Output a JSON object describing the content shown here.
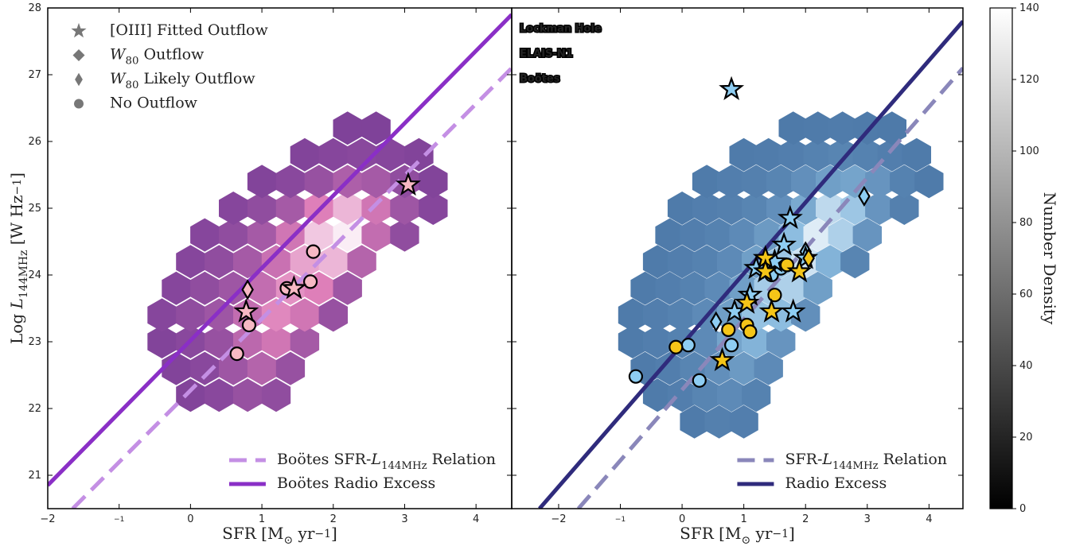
{
  "chart_data": [
    {
      "type": "hexbin",
      "xlim": [
        -2,
        4.5
      ],
      "ylim": [
        20.5,
        28
      ],
      "xticks": [
        {
          "value": -2,
          "label": "−2"
        },
        {
          "value": -1,
          "label": "−1"
        },
        0,
        1,
        2,
        3,
        4
      ],
      "yticks": [
        21,
        22,
        23,
        24,
        25,
        26,
        27,
        28
      ],
      "xlabel": "SFR [M⊙ yr−1]",
      "ylabel": "Log L144MHz [W Hz−1]",
      "colors": [
        "#7b3f98",
        "#de7fb9",
        "#ffffff"
      ],
      "hexbins": {
        "x": [
          0.0,
          0.4,
          0.8,
          1.2,
          -0.2,
          0.2,
          0.6,
          1.0,
          1.4,
          -0.4,
          0.0,
          0.4,
          0.8,
          1.2,
          1.6,
          -0.4,
          0.0,
          0.4,
          0.8,
          1.2,
          1.6,
          2.0,
          -0.2,
          0.2,
          0.6,
          1.0,
          1.4,
          1.8,
          2.2,
          0.0,
          0.4,
          0.8,
          1.2,
          1.6,
          2.0,
          2.4,
          0.2,
          0.6,
          1.0,
          1.4,
          1.8,
          2.2,
          2.6,
          3.0,
          0.6,
          1.0,
          1.4,
          1.8,
          2.2,
          2.6,
          3.0,
          3.4,
          1.0,
          1.4,
          1.8,
          2.2,
          2.6,
          3.0,
          3.4,
          1.6,
          2.0,
          2.4,
          2.8,
          3.2,
          2.2,
          2.6
        ],
        "y": [
          22.2,
          22.2,
          22.2,
          22.2,
          22.6,
          22.6,
          22.6,
          22.6,
          22.6,
          23.0,
          23.0,
          23.0,
          23.0,
          23.0,
          23.0,
          23.4,
          23.4,
          23.4,
          23.4,
          23.4,
          23.4,
          23.4,
          23.8,
          23.8,
          23.8,
          23.8,
          23.8,
          23.8,
          23.8,
          24.2,
          24.2,
          24.2,
          24.2,
          24.2,
          24.2,
          24.2,
          24.6,
          24.6,
          24.6,
          24.6,
          24.6,
          24.6,
          24.6,
          24.6,
          25.0,
          25.0,
          25.0,
          25.0,
          25.0,
          25.0,
          25.0,
          25.0,
          25.4,
          25.4,
          25.4,
          25.4,
          25.4,
          25.4,
          25.4,
          25.8,
          25.8,
          25.8,
          25.8,
          25.8,
          26.2,
          26.2
        ],
        "counts": [
          5,
          10,
          20,
          15,
          5,
          10,
          25,
          40,
          20,
          5,
          10,
          20,
          45,
          60,
          30,
          8,
          15,
          25,
          50,
          75,
          60,
          20,
          8,
          15,
          25,
          50,
          80,
          70,
          25,
          8,
          15,
          30,
          55,
          90,
          100,
          40,
          8,
          15,
          30,
          60,
          110,
          130,
          50,
          15,
          8,
          15,
          30,
          70,
          100,
          60,
          25,
          8,
          5,
          10,
          20,
          35,
          30,
          15,
          5,
          5,
          8,
          10,
          8,
          5,
          3,
          3
        ]
      },
      "lines": [
        {
          "name": "Boötes SFR-L144MHz Relation",
          "color": "#c48fe4",
          "style": "dashed",
          "x": [
            -1.65,
            4.5
          ],
          "y": [
            20.5,
            27.1
          ]
        },
        {
          "name": "Boötes Radio Excess",
          "color": "#8a2fc6",
          "style": "solid",
          "x": [
            -2,
            4.5
          ],
          "y": [
            20.85,
            27.9
          ]
        }
      ],
      "markers": [
        {
          "name": "[OIII] Fitted Outflow",
          "marker": "star"
        },
        {
          "name": "W80 Outflow",
          "marker": "diamond"
        },
        {
          "name": "W80 Likely Outflow",
          "marker": "thin_diamond"
        },
        {
          "name": "No Outflow",
          "marker": "circle"
        }
      ],
      "groups": [
        {
          "color": "#f7b9c4",
          "circle": {
            "x": [
              0.65,
              0.82,
              1.35,
              1.68,
              1.72
            ],
            "y": [
              22.82,
              23.25,
              23.8,
              23.9,
              24.35
            ]
          },
          "thin_diamond": {
            "x": [
              0.8
            ],
            "y": [
              23.78
            ]
          },
          "star": {
            "x": [
              3.05,
              0.78,
              1.45
            ],
            "y": [
              25.35,
              23.45,
              23.8
            ]
          }
        }
      ]
    },
    {
      "type": "hexbin",
      "xlim": [
        -2.76,
        4.55
      ],
      "ylim": [
        20.5,
        28
      ],
      "xticks": [
        {
          "value": -2,
          "label": "−2"
        },
        {
          "value": -1,
          "label": "−1"
        },
        0,
        1,
        2,
        3,
        4
      ],
      "xlabel": "SFR [M⊙ yr−1]",
      "colors": [
        "#4a76a6",
        "#8dbde0",
        "#ffffff"
      ],
      "hexbins": {
        "x": [
          0.2,
          0.6,
          1.0,
          -0.4,
          0.0,
          0.4,
          0.8,
          1.2,
          -0.6,
          -0.2,
          0.2,
          0.6,
          1.0,
          1.4,
          -0.8,
          -0.4,
          0.0,
          0.4,
          0.8,
          1.2,
          1.6,
          -0.8,
          -0.4,
          0.0,
          0.4,
          0.8,
          1.2,
          1.6,
          2.0,
          -0.6,
          -0.2,
          0.2,
          0.6,
          1.0,
          1.4,
          1.8,
          2.2,
          -0.4,
          0.0,
          0.4,
          0.8,
          1.2,
          1.6,
          2.0,
          2.4,
          2.8,
          -0.2,
          0.2,
          0.6,
          1.0,
          1.4,
          1.8,
          2.2,
          2.6,
          3.0,
          0.0,
          0.4,
          0.8,
          1.2,
          1.6,
          2.0,
          2.4,
          2.8,
          3.2,
          3.6,
          0.4,
          0.8,
          1.2,
          1.6,
          2.0,
          2.4,
          2.8,
          3.2,
          3.6,
          4.0,
          1.0,
          1.4,
          1.8,
          2.2,
          2.6,
          3.0,
          3.4,
          3.8,
          1.8,
          2.2,
          2.6,
          3.0,
          3.4
        ],
        "y": [
          21.8,
          21.8,
          21.8,
          22.2,
          22.2,
          22.2,
          22.2,
          22.2,
          22.6,
          22.6,
          22.6,
          22.6,
          22.6,
          22.6,
          23.0,
          23.0,
          23.0,
          23.0,
          23.0,
          23.0,
          23.0,
          23.4,
          23.4,
          23.4,
          23.4,
          23.4,
          23.4,
          23.4,
          23.4,
          23.8,
          23.8,
          23.8,
          23.8,
          23.8,
          23.8,
          23.8,
          23.8,
          24.2,
          24.2,
          24.2,
          24.2,
          24.2,
          24.2,
          24.2,
          24.2,
          24.2,
          24.6,
          24.6,
          24.6,
          24.6,
          24.6,
          24.6,
          24.6,
          24.6,
          24.6,
          25.0,
          25.0,
          25.0,
          25.0,
          25.0,
          25.0,
          25.0,
          25.0,
          25.0,
          25.0,
          25.4,
          25.4,
          25.4,
          25.4,
          25.4,
          25.4,
          25.4,
          25.4,
          25.4,
          25.4,
          25.8,
          25.8,
          25.8,
          25.8,
          25.8,
          25.8,
          25.8,
          25.8,
          26.2,
          26.2,
          26.2,
          26.2,
          26.2
        ],
        "counts": [
          5,
          10,
          8,
          5,
          8,
          15,
          20,
          12,
          5,
          8,
          15,
          25,
          35,
          20,
          5,
          8,
          12,
          20,
          45,
          60,
          30,
          5,
          8,
          12,
          20,
          40,
          75,
          70,
          25,
          5,
          8,
          12,
          20,
          40,
          85,
          90,
          40,
          5,
          8,
          12,
          20,
          40,
          80,
          110,
          60,
          15,
          5,
          8,
          12,
          20,
          35,
          70,
          120,
          90,
          30,
          5,
          8,
          10,
          15,
          25,
          50,
          100,
          80,
          30,
          10,
          5,
          8,
          10,
          15,
          25,
          40,
          45,
          30,
          12,
          5,
          5,
          6,
          8,
          12,
          15,
          12,
          8,
          5,
          4,
          5,
          6,
          5,
          4
        ]
      },
      "lines": [
        {
          "name": "SFR-L144MHz Relation",
          "color": "#8a87ba",
          "style": "dashed",
          "x": [
            -1.68,
            4.55
          ],
          "y": [
            20.5,
            27.1
          ]
        },
        {
          "name": "Radio Excess",
          "color": "#2f2b7c",
          "style": "solid",
          "x": [
            -2.31,
            4.55
          ],
          "y": [
            20.5,
            27.8
          ]
        }
      ],
      "sample_labels": [
        {
          "name": "Lockman Hole",
          "color": "#8ecdf2"
        },
        {
          "name": "ELAIS-N1",
          "color": "#f5c518"
        },
        {
          "name": "Boötes",
          "color": "#f7b9c4"
        }
      ],
      "groups": [
        {
          "color": "#8ecdf2",
          "star": {
            "x": [
              0.8,
              1.75,
              1.65,
              1.2,
              1.5,
              0.85,
              1.8,
              1.1,
              2.0
            ],
            "y": [
              26.78,
              24.85,
              24.45,
              24.1,
              24.2,
              23.45,
              23.45,
              23.7,
              24.25
            ]
          },
          "circle": {
            "x": [
              -0.75,
              0.1,
              0.28,
              0.8,
              1.45,
              1.6
            ],
            "y": [
              22.48,
              22.95,
              22.42,
              22.95,
              24.0,
              24.1
            ]
          },
          "thin_diamond": {
            "x": [
              2.95,
              0.55,
              2.0
            ],
            "y": [
              25.18,
              23.3,
              24.35
            ]
          }
        },
        {
          "color": "#f5c518",
          "star": {
            "x": [
              0.65,
              1.05,
              1.35,
              1.35,
              1.9,
              1.45
            ],
            "y": [
              22.72,
              23.58,
              24.25,
              24.05,
              24.05,
              23.45
            ]
          },
          "circle": {
            "x": [
              -0.1,
              0.75,
              1.05,
              1.1,
              1.5,
              1.7
            ],
            "y": [
              22.92,
              23.18,
              23.25,
              23.15,
              23.7,
              24.15
            ]
          },
          "thin_diamond": {
            "x": [
              2.05
            ],
            "y": [
              24.25
            ]
          }
        }
      ]
    },
    {
      "type": "colorbar",
      "label": "Number Density",
      "ylim": [
        0,
        140
      ],
      "yticks": [
        0,
        20,
        40,
        60,
        80,
        100,
        120,
        140
      ],
      "colors": [
        "#000000",
        "#ffffff"
      ]
    }
  ]
}
